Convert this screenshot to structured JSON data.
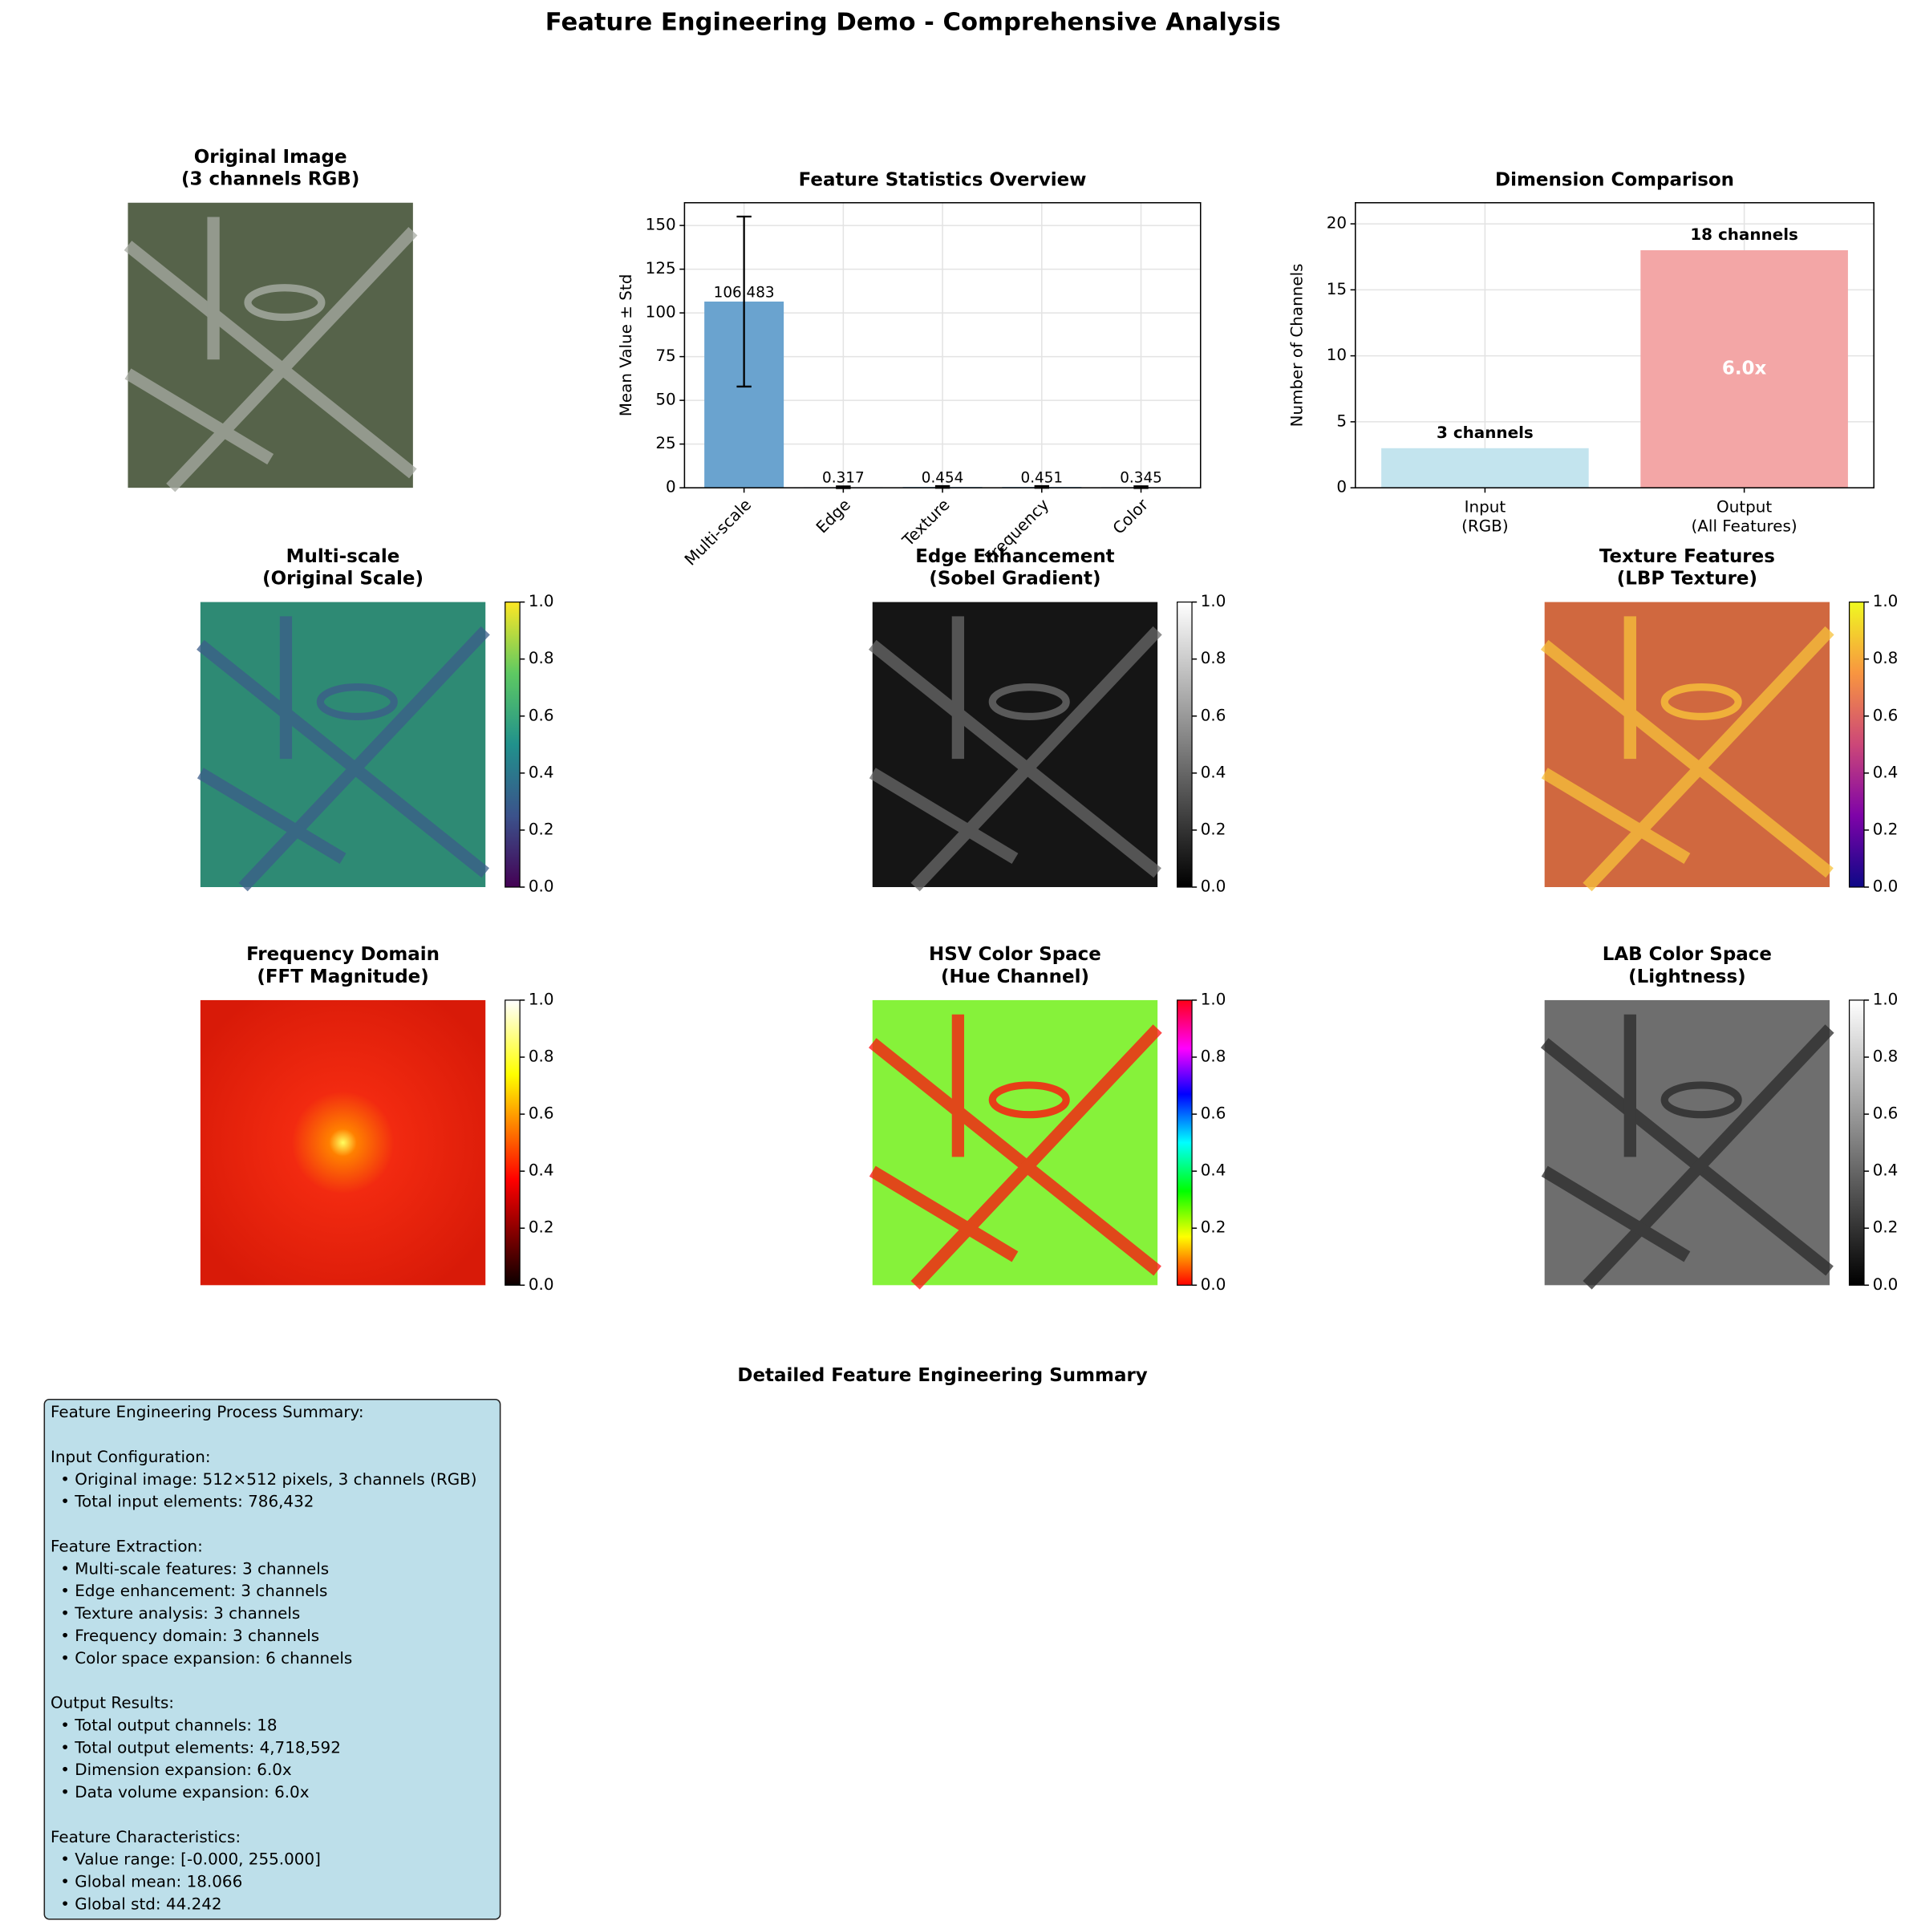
{
  "title": "Feature Engineering Demo - Comprehensive Analysis",
  "chart_data": [
    {
      "type": "bar",
      "title": "Feature Statistics Overview",
      "y_label": "Mean Value ± Std",
      "categories": [
        "Multi-scale",
        "Edge",
        "Texture",
        "Frequency",
        "Color"
      ],
      "values": [
        106.483,
        0.317,
        0.454,
        0.451,
        0.345
      ],
      "errors": [
        48.6,
        0.5,
        0.5,
        0.5,
        0.5
      ],
      "color": "#6aa3cf",
      "ylim": [
        0,
        163
      ],
      "yticks": [
        0,
        25,
        50,
        75,
        100,
        125,
        150
      ],
      "grid": true
    },
    {
      "type": "bar",
      "title": "Dimension Comparison",
      "y_label": "Number of Channels",
      "categories": [
        "Input\n(RGB)",
        "Output\n(All Features)"
      ],
      "values": [
        3,
        18
      ],
      "value_labels": [
        "3 channels",
        "18 channels"
      ],
      "colors": [
        "#c3e4ee",
        "#f3a6a6"
      ],
      "annotation": "6.0x",
      "ylim": [
        0,
        21.6
      ],
      "yticks": [
        0,
        5,
        10,
        15,
        20
      ],
      "grid": true
    }
  ],
  "panels": [
    {
      "title": "Original Image\n(3 channels RGB)"
    },
    {
      "title": "Multi-scale\n(Original Scale)"
    },
    {
      "title": "Edge Enhancement\n(Sobel Gradient)"
    },
    {
      "title": "Texture Features\n(LBP Texture)"
    },
    {
      "title": "Frequency Domain\n(FFT Magnitude)"
    },
    {
      "title": "HSV Color Space\n(Hue Channel)"
    },
    {
      "title": "LAB Color Space\n(Lightness)"
    }
  ],
  "colorbar_ticks": [
    {
      "value": 0,
      "label": "0.0"
    },
    {
      "value": 0.2,
      "label": "0.2"
    },
    {
      "value": 0.4,
      "label": "0.4"
    },
    {
      "value": 0.6,
      "label": "0.6"
    },
    {
      "value": 0.8,
      "label": "0.8"
    },
    {
      "value": 1,
      "label": "1.0"
    }
  ],
  "summary": {
    "title": "Detailed Feature Engineering Summary",
    "header": "Feature Engineering Process Summary:",
    "sections": [
      {
        "heading": "Input Configuration:",
        "items": [
          "• Original image: 512×512 pixels, 3 channels (RGB)",
          "• Total input elements: 786,432"
        ]
      },
      {
        "heading": "Feature Extraction:",
        "items": [
          "• Multi-scale features: 3 channels",
          "• Edge enhancement: 3 channels",
          "• Texture analysis: 3 channels",
          "• Frequency domain: 3 channels",
          "• Color space expansion: 6 channels"
        ]
      },
      {
        "heading": "Output Results:",
        "items": [
          "• Total output channels: 18",
          "• Total output elements: 4,718,592",
          "• Dimension expansion: 6.0x",
          "• Data volume expansion: 6.0x"
        ]
      },
      {
        "heading": "Feature Characteristics:",
        "items": [
          "• Value range: [-0.000, 255.000]",
          "• Global mean: 18.066",
          "• Global std: 44.242"
        ]
      }
    ]
  }
}
